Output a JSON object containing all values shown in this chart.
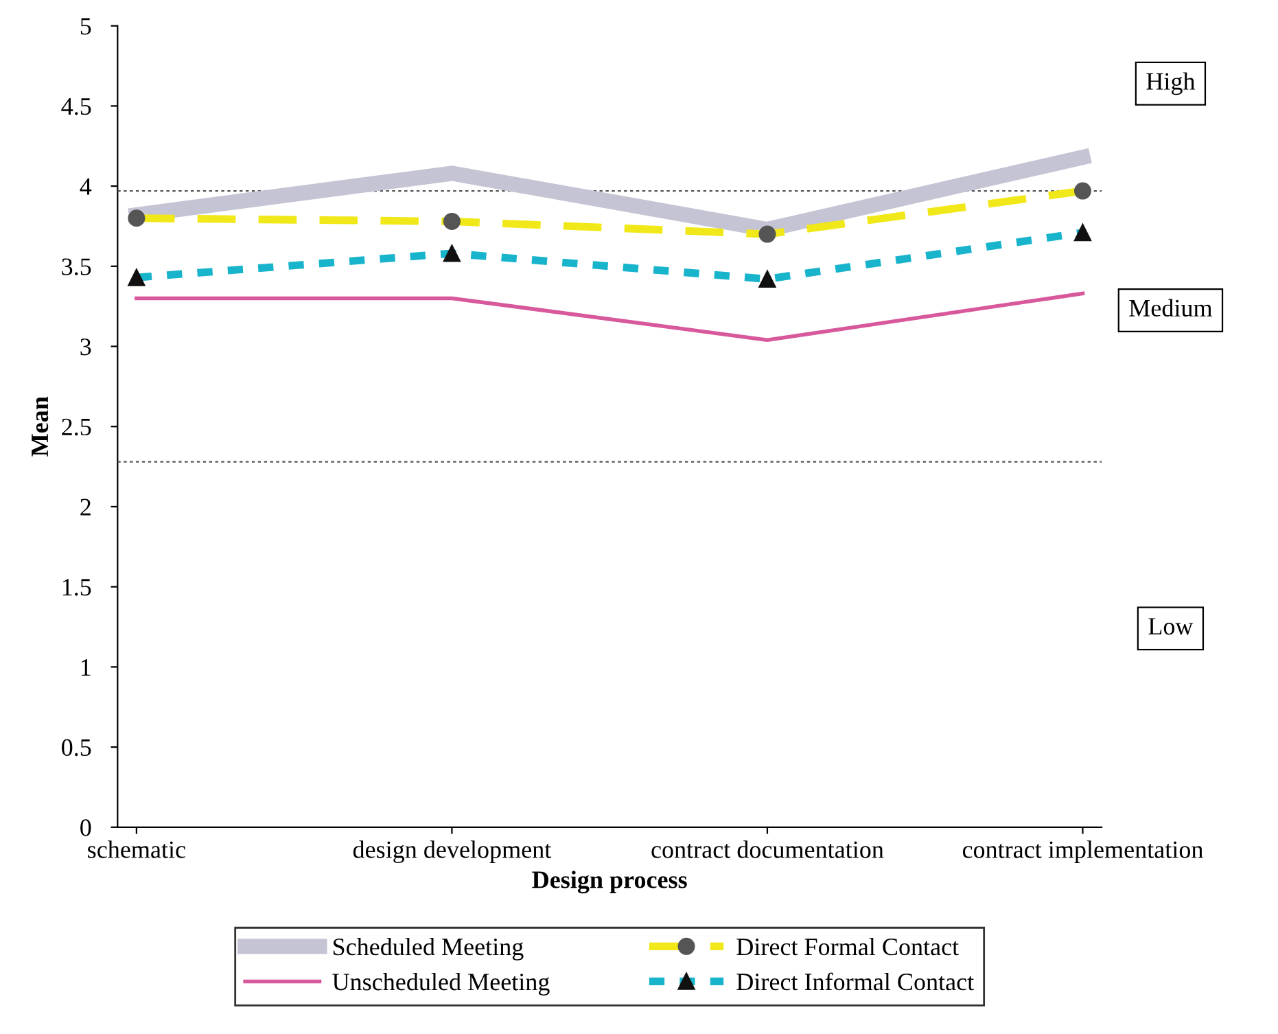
{
  "chart_data": {
    "type": "line",
    "xlabel": "Design process",
    "ylabel": "Mean",
    "categories": [
      "schematic",
      "design development",
      "contract documentation",
      "contract implementation"
    ],
    "series": [
      {
        "name": "Scheduled Meeting",
        "color": "#c4c4d4",
        "values": [
          3.82,
          4.08,
          3.73,
          4.18
        ],
        "line_style": "solid",
        "marker": "none"
      },
      {
        "name": "Unscheduled Meeting",
        "color": "#d8589c",
        "values": [
          3.3,
          3.3,
          3.04,
          3.33
        ],
        "line_style": "solid",
        "marker": "none"
      },
      {
        "name": "Direct Formal Contact",
        "color": "#f0e818",
        "values": [
          3.8,
          3.78,
          3.7,
          3.97
        ],
        "line_style": "dashed",
        "marker": "circle"
      },
      {
        "name": "Direct Informal Contact",
        "color": "#18b4cc",
        "values": [
          3.43,
          3.58,
          3.42,
          3.71
        ],
        "line_style": "dotted",
        "marker": "triangle"
      }
    ],
    "ylim": [
      0,
      5
    ],
    "yticks": [
      0,
      0.5,
      1,
      1.5,
      2,
      2.5,
      3,
      3.5,
      4,
      4.5,
      5
    ],
    "ref_lines": [
      {
        "axis": "y",
        "value": 3.97,
        "color": "#555555",
        "line_style": "dotted"
      },
      {
        "axis": "y",
        "value": 2.28,
        "color": "#555555",
        "line_style": "dotted"
      }
    ],
    "annotations": [
      "High",
      "Medium",
      "Low"
    ],
    "legend": "bottom",
    "grid": false
  }
}
